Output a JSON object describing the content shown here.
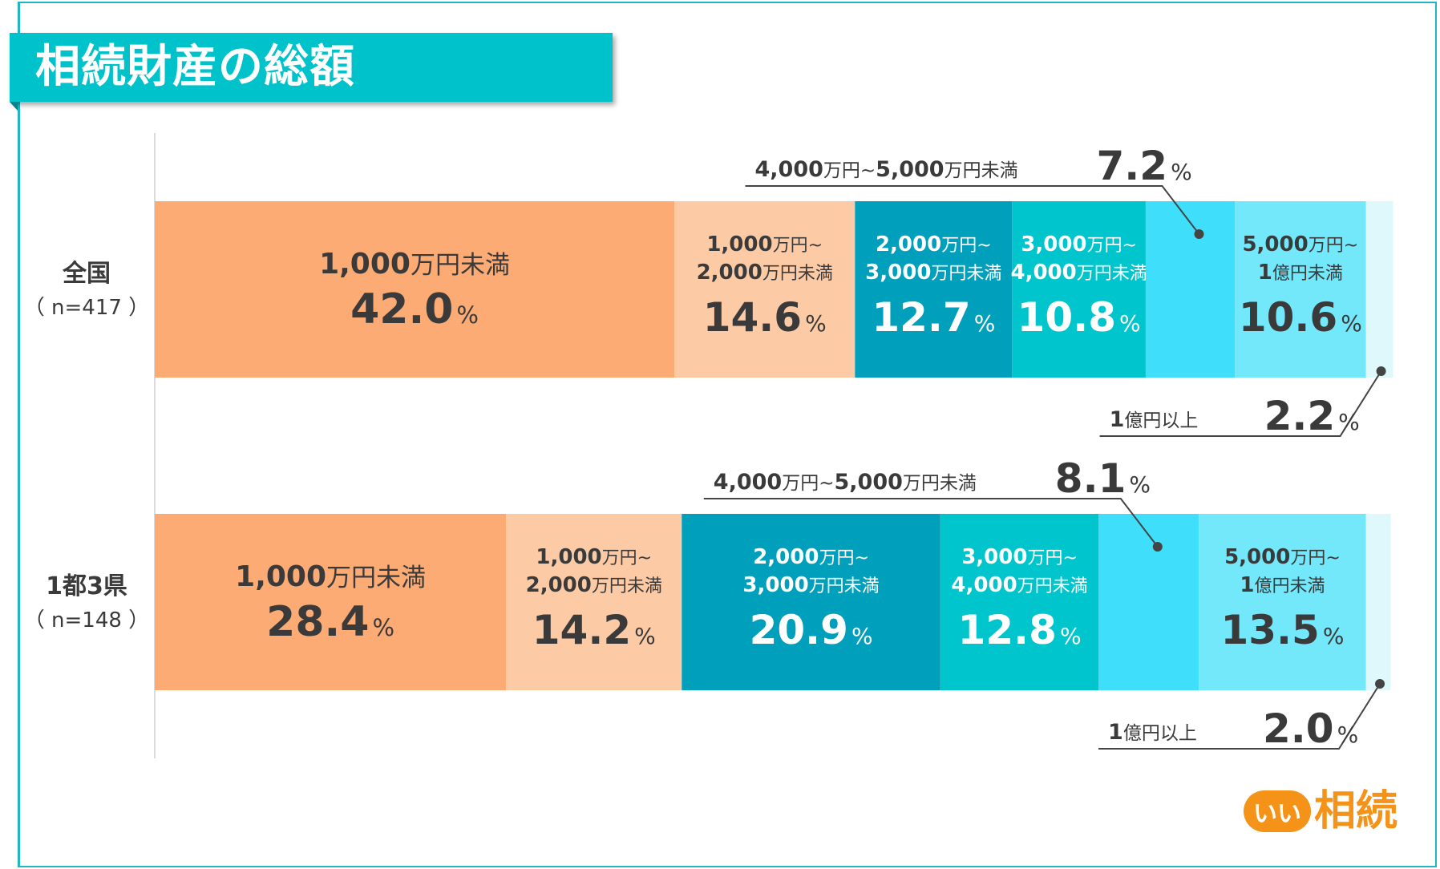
{
  "title": "相続財産の総額",
  "logo": {
    "mark": "いい",
    "text": "相続"
  },
  "chart_data": {
    "type": "bar",
    "orientation": "horizontal-stacked-100",
    "unit": "%",
    "categories": [
      "全国",
      "1都3県"
    ],
    "category_notes": [
      "（ n=417 ）",
      "（ n=148 ）"
    ],
    "series": [
      {
        "name": "1,000万円未満",
        "label_lines": [
          "1,000万円未満"
        ],
        "color": "#fcab74",
        "text_color": "#3a3a3a",
        "values": [
          42.0,
          28.4
        ]
      },
      {
        "name": "1,000万円~2,000万円未満",
        "label_lines": [
          "1,000万円~",
          "2,000万円未満"
        ],
        "color": "#fdcaa6",
        "text_color": "#3a3a3a",
        "values": [
          14.6,
          14.2
        ]
      },
      {
        "name": "2,000万円~3,000万円未満",
        "label_lines": [
          "2,000万円~",
          "3,000万円未満"
        ],
        "color": "#009fbb",
        "text_color": "#ffffff",
        "values": [
          12.7,
          20.9
        ]
      },
      {
        "name": "3,000万円~4,000万円未満",
        "label_lines": [
          "3,000万円~",
          "4,000万円未満"
        ],
        "color": "#00c5cd",
        "text_color": "#ffffff",
        "values": [
          10.8,
          12.8
        ]
      },
      {
        "name": "4,000万円~5,000万円未満",
        "label_lines": [
          "4,000万円~5,000万円未満"
        ],
        "color": "#3fdffc",
        "text_color": "#3a3a3a",
        "values": [
          7.2,
          8.1
        ],
        "callout": "above"
      },
      {
        "name": "5,000万円~1億円未満",
        "label_lines": [
          "5,000万円~",
          "1億円未満"
        ],
        "color": "#74e8fb",
        "text_color": "#3a3a3a",
        "values": [
          10.6,
          13.5
        ]
      },
      {
        "name": "1億円以上",
        "label_lines": [
          "1億円以上"
        ],
        "color": "#dff8fc",
        "text_color": "#3a3a3a",
        "values": [
          2.2,
          2.0
        ],
        "callout": "below"
      }
    ]
  }
}
